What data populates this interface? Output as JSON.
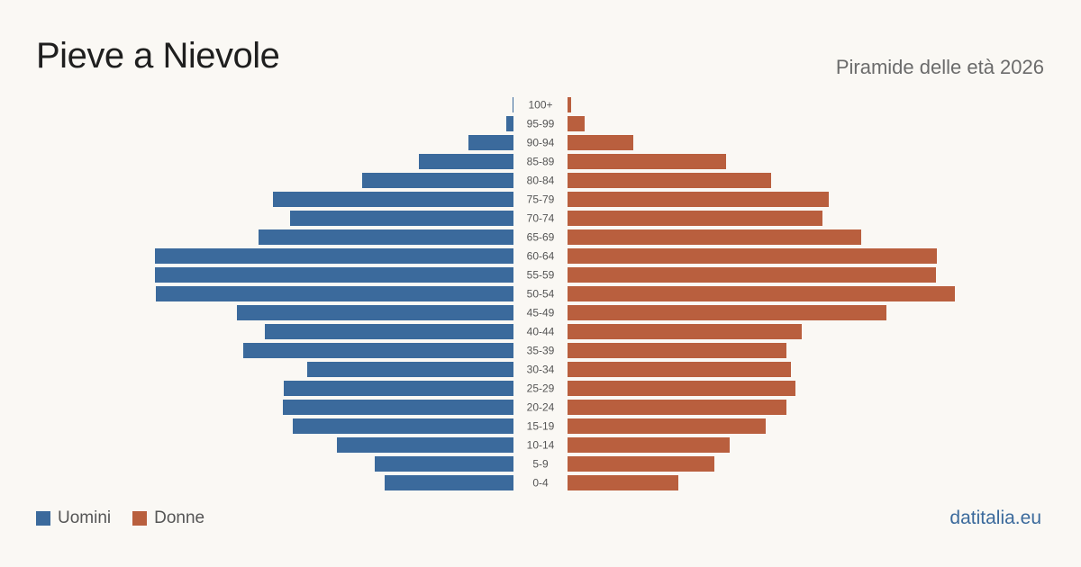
{
  "header": {
    "title": "Pieve a Nievole",
    "subtitle": "Piramide delle età 2026"
  },
  "legend": {
    "men_label": "Uomini",
    "women_label": "Donne"
  },
  "footer": {
    "brand": "datitalia.eu"
  },
  "colors": {
    "men": "#3b6a9c",
    "women": "#b95f3e",
    "background": "#faf8f4"
  },
  "chart_data": {
    "type": "bar",
    "orientation": "horizontal-pyramid",
    "categories": [
      "100+",
      "95-99",
      "90-94",
      "85-89",
      "80-84",
      "75-79",
      "70-74",
      "65-69",
      "60-64",
      "55-59",
      "50-54",
      "45-49",
      "40-44",
      "35-39",
      "30-34",
      "25-29",
      "20-24",
      "15-19",
      "10-14",
      "5-9",
      "0-4"
    ],
    "series": [
      {
        "name": "Uomini",
        "values": [
          1,
          8,
          50,
          105,
          168,
          267,
          248,
          283,
          398,
          398,
          397,
          307,
          276,
          300,
          229,
          255,
          256,
          245,
          196,
          154,
          143
        ]
      },
      {
        "name": "Donne",
        "values": [
          4,
          19,
          73,
          176,
          226,
          290,
          283,
          326,
          410,
          409,
          430,
          354,
          260,
          243,
          248,
          253,
          243,
          220,
          180,
          163,
          123
        ]
      }
    ],
    "xlim": [
      0,
      430
    ],
    "grid": false,
    "legend_position": "bottom-left"
  }
}
